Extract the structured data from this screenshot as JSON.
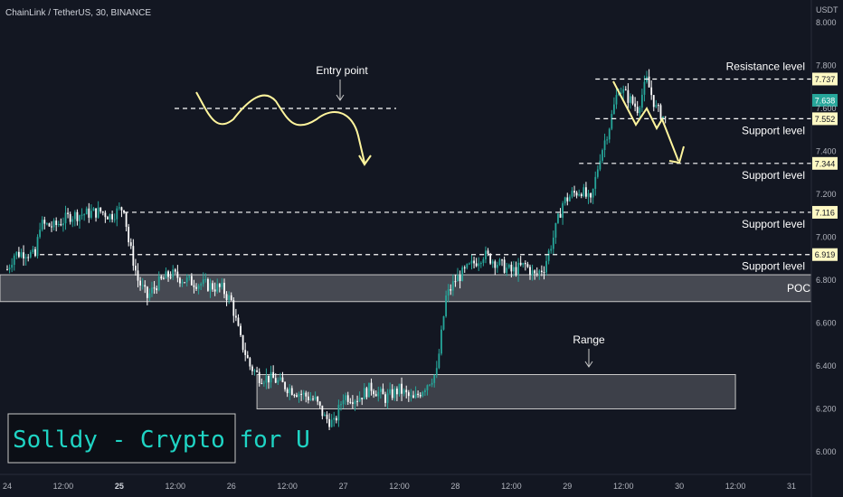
{
  "header": {
    "symbol": "ChainLink / TetherUS, 30, BINANCE",
    "unit": "USDT"
  },
  "chart_data": {
    "type": "candlestick",
    "x_ticks": [
      "24",
      "12:00",
      "25",
      "12:00",
      "26",
      "12:00",
      "27",
      "12:00",
      "28",
      "12:00",
      "29",
      "12:00",
      "30",
      "12:00",
      "31"
    ],
    "y_ticks": [
      "8.000",
      "7.800",
      "7.600",
      "7.400",
      "7.200",
      "7.000",
      "6.800",
      "6.600",
      "6.400",
      "6.200",
      "6.000"
    ],
    "y_tick_values": [
      8.0,
      7.8,
      7.6,
      7.4,
      7.2,
      7.0,
      6.8,
      6.6,
      6.4,
      6.2,
      6.0
    ],
    "ylim": [
      5.98,
      8.08
    ],
    "x_tick_index": [
      0,
      24,
      48,
      72,
      96,
      120,
      144,
      168,
      192,
      216,
      240,
      264,
      288,
      312,
      336
    ],
    "price_path": [
      [
        0,
        6.85
      ],
      [
        3,
        6.92
      ],
      [
        8,
        6.93
      ],
      [
        12,
        6.91
      ],
      [
        14,
        7.06
      ],
      [
        20,
        7.05
      ],
      [
        27,
        7.1
      ],
      [
        34,
        7.11
      ],
      [
        40,
        7.12
      ],
      [
        44,
        7.1
      ],
      [
        50,
        7.14
      ],
      [
        52,
        6.98
      ],
      [
        56,
        6.8
      ],
      [
        60,
        6.72
      ],
      [
        64,
        6.78
      ],
      [
        70,
        6.83
      ],
      [
        76,
        6.8
      ],
      [
        84,
        6.78
      ],
      [
        92,
        6.76
      ],
      [
        96,
        6.7
      ],
      [
        100,
        6.52
      ],
      [
        104,
        6.4
      ],
      [
        108,
        6.35
      ],
      [
        114,
        6.34
      ],
      [
        120,
        6.3
      ],
      [
        126,
        6.27
      ],
      [
        132,
        6.24
      ],
      [
        136,
        6.16
      ],
      [
        140,
        6.13
      ],
      [
        144,
        6.26
      ],
      [
        150,
        6.25
      ],
      [
        156,
        6.3
      ],
      [
        162,
        6.25
      ],
      [
        168,
        6.29
      ],
      [
        174,
        6.24
      ],
      [
        180,
        6.32
      ],
      [
        184,
        6.37
      ],
      [
        188,
        6.72
      ],
      [
        192,
        6.8
      ],
      [
        198,
        6.86
      ],
      [
        204,
        6.92
      ],
      [
        210,
        6.88
      ],
      [
        216,
        6.84
      ],
      [
        222,
        6.87
      ],
      [
        226,
        6.82
      ],
      [
        230,
        6.86
      ],
      [
        234,
        7.0
      ],
      [
        238,
        7.16
      ],
      [
        242,
        7.2
      ],
      [
        246,
        7.22
      ],
      [
        250,
        7.16
      ],
      [
        254,
        7.38
      ],
      [
        258,
        7.52
      ],
      [
        262,
        7.7
      ],
      [
        266,
        7.65
      ],
      [
        270,
        7.6
      ],
      [
        274,
        7.73
      ],
      [
        278,
        7.6
      ],
      [
        282,
        7.55
      ]
    ],
    "levels": [
      {
        "label": "Resistance level",
        "value": 7.737
      },
      {
        "label": "Support level",
        "value": 7.552
      },
      {
        "label": "Support level",
        "value": 7.344
      },
      {
        "label": "Support level",
        "value": 7.116
      },
      {
        "label": "Support level",
        "value": 6.919
      }
    ],
    "current_price": 7.638,
    "zones": [
      {
        "label": "POC",
        "from": 6.7,
        "to": 6.825
      },
      {
        "label": "Range",
        "from": 6.2,
        "to": 6.36
      }
    ],
    "annotations": [
      "Entry point",
      "Range"
    ],
    "colors": {
      "up": "#26a69a",
      "down": "#ffffff",
      "level": "#ffffff",
      "current": "#26a69a",
      "label_box": "#fff9c4",
      "arrow": "#fff59d"
    }
  },
  "logo_text": "Solldy - Crypto for U"
}
